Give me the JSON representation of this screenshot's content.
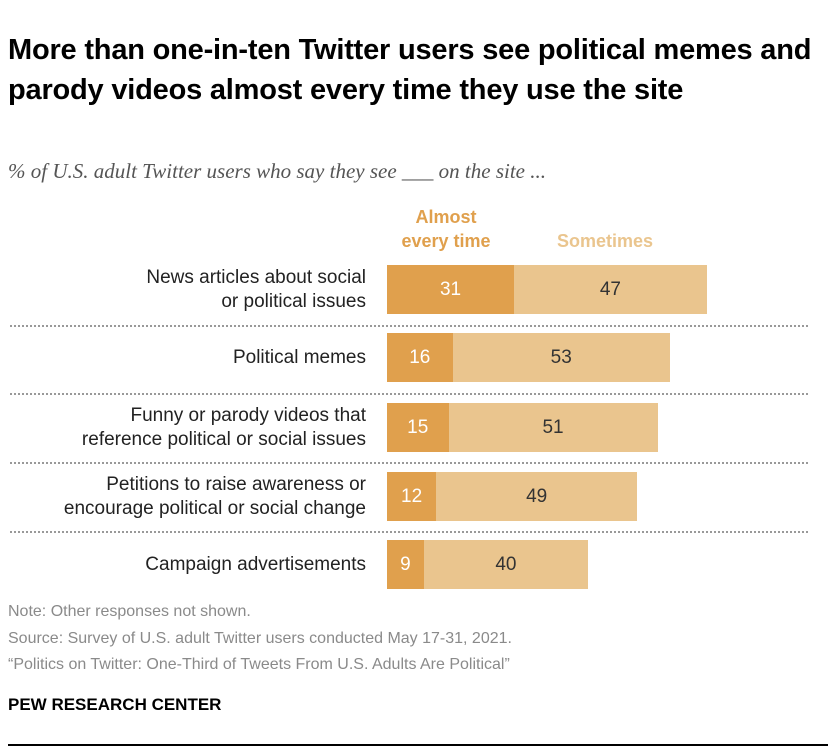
{
  "colors": {
    "almost": "#E0A04D",
    "sometimes": "#EAC58E",
    "value_dark": "#333333",
    "value_light": "#ffffff"
  },
  "chart_data": {
    "type": "bar",
    "stacked": true,
    "orientation": "horizontal",
    "title": "More than one-in-ten Twitter users see political memes and parody videos almost every time they use the site",
    "subtitle": "% of U.S. adult Twitter users who say they see ___ on the site ...",
    "categories": [
      [
        "News articles about social",
        "or political issues"
      ],
      [
        "Political memes"
      ],
      [
        "Funny or parody videos that",
        "reference political or social issues"
      ],
      [
        "Petitions to raise awareness or",
        "encourage political or social change"
      ],
      [
        "Campaign advertisements"
      ]
    ],
    "series": [
      {
        "name": "Almost every time",
        "legend_lines": [
          "Almost",
          "every time"
        ],
        "values": [
          31,
          16,
          15,
          12,
          9
        ]
      },
      {
        "name": "Sometimes",
        "legend_lines": [
          "Sometimes"
        ],
        "values": [
          47,
          53,
          51,
          49,
          40
        ]
      }
    ],
    "xlim": [
      0,
      100
    ],
    "legend": "top"
  },
  "footer": {
    "note": "Note: Other responses not shown.",
    "source": "Source: Survey of U.S. adult Twitter users conducted May 17-31, 2021.",
    "report": "“Politics on Twitter: One-Third of Tweets From U.S. Adults Are Political”",
    "brand": "PEW RESEARCH CENTER"
  }
}
